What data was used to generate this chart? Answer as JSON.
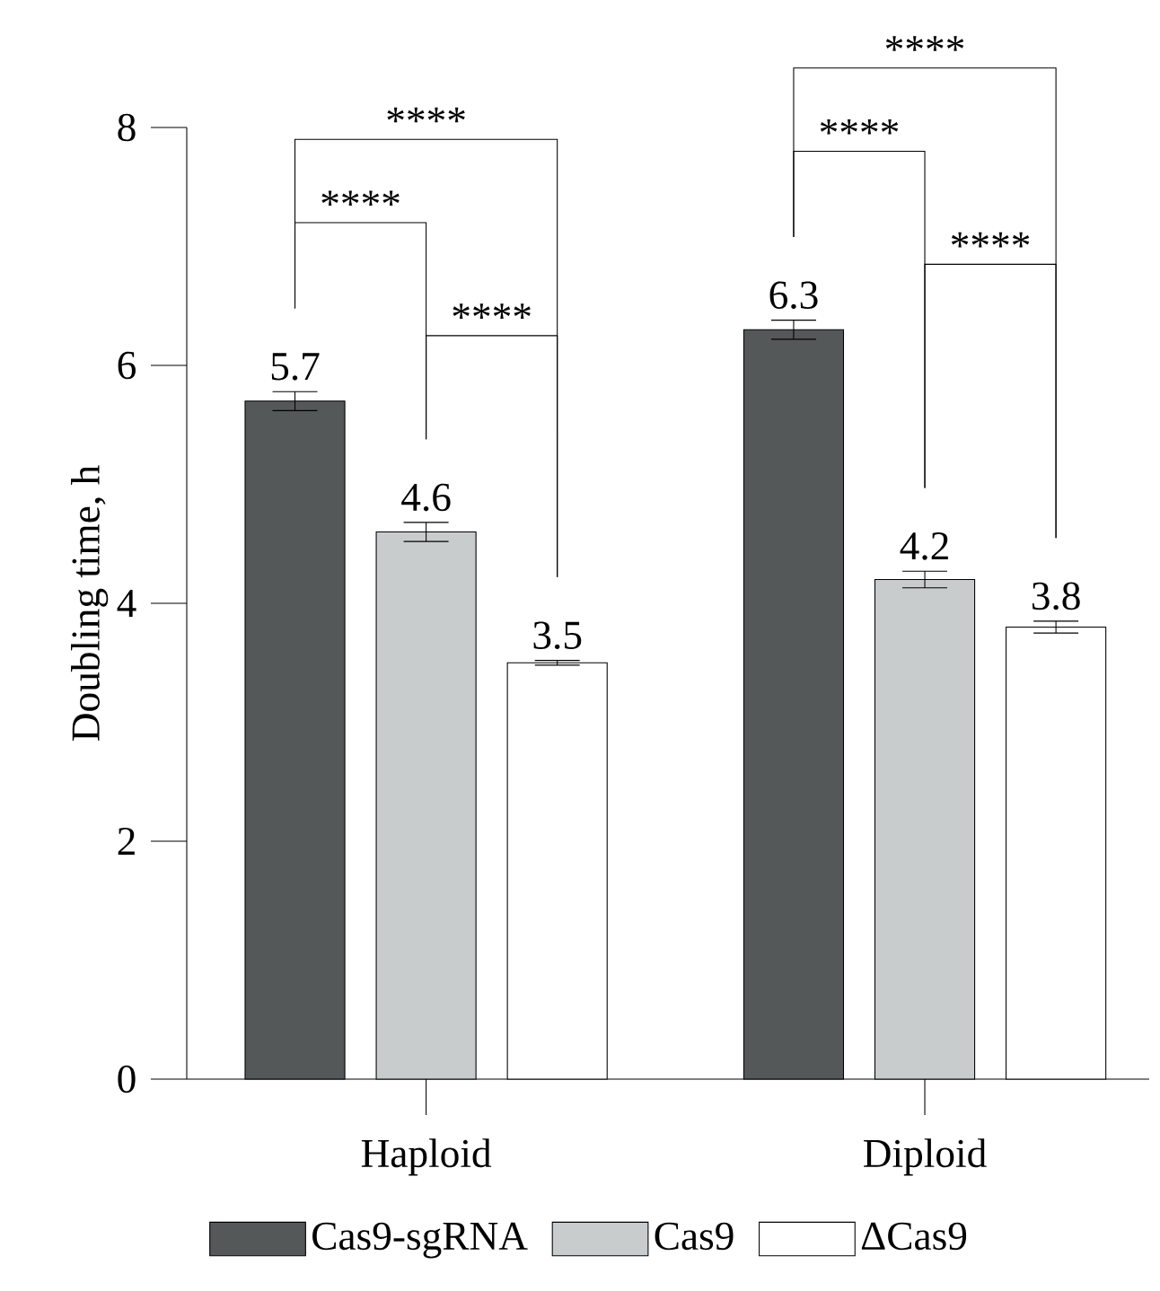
{
  "chart_data": {
    "type": "bar",
    "ylabel": "Doubling time, h",
    "categories": [
      "Haploid",
      "Diploid"
    ],
    "series": [
      {
        "name": "Cas9-sgRNA",
        "color": "#545859",
        "values": [
          5.7,
          6.3
        ],
        "errors": [
          0.08,
          0.08
        ]
      },
      {
        "name": "Cas9",
        "color": "#c9cccd",
        "values": [
          4.6,
          4.2
        ],
        "errors": [
          0.08,
          0.07
        ]
      },
      {
        "name": "ΔCas9",
        "color": "#ffffff",
        "values": [
          3.5,
          3.8
        ],
        "errors": [
          0.02,
          0.05
        ]
      }
    ],
    "ylim": [
      0,
      8
    ],
    "yticks": [
      0,
      2,
      4,
      6,
      8
    ],
    "data_labels": true,
    "legend": "bottom",
    "annotations": [
      "****",
      "****",
      "****",
      "****",
      "****",
      "****"
    ]
  }
}
